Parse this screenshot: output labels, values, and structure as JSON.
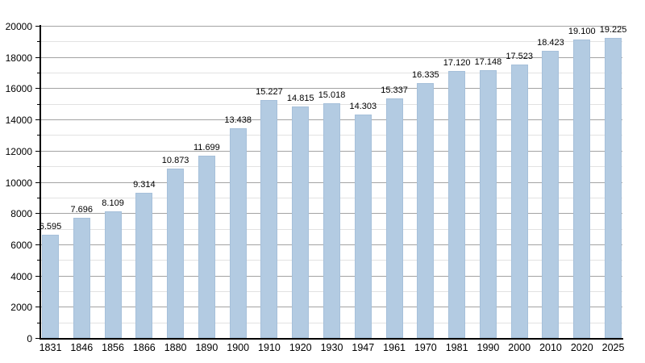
{
  "chart_data": {
    "type": "bar",
    "title": "",
    "xlabel": "",
    "ylabel": "",
    "categories": [
      "1831",
      "1846",
      "1856",
      "1866",
      "1880",
      "1890",
      "1900",
      "1910",
      "1920",
      "1930",
      "1947",
      "1961",
      "1970",
      "1981",
      "1990",
      "2000",
      "2010",
      "2020",
      "2025"
    ],
    "values": [
      6595,
      7696,
      8109,
      9314,
      10873,
      11699,
      13438,
      15227,
      14815,
      15018,
      14303,
      15337,
      16335,
      17120,
      17148,
      17523,
      18423,
      19100,
      19225
    ],
    "value_labels": [
      "6.595",
      "7.696",
      "8.109",
      "9.314",
      "10.873",
      "11.699",
      "13.438",
      "15.227",
      "14.815",
      "15.018",
      "14.303",
      "15.337",
      "16.335",
      "17.120",
      "17.148",
      "17.523",
      "18.423",
      "19.100",
      "19.225"
    ],
    "ylim": [
      0,
      20000
    ],
    "y_major_step": 2000,
    "y_minor_step": 1000,
    "y_tick_labels": [
      "0",
      "2000",
      "4000",
      "6000",
      "8000",
      "10000",
      "12000",
      "14000",
      "16000",
      "18000",
      "20000"
    ],
    "grid": "on",
    "legend": "none",
    "colors": {
      "bar_fill": "#b3cbe2",
      "bar_edge": "#a6c0da",
      "major_grid": "#a3a3a3",
      "minor_grid": "#e2e2e2",
      "axis": "#000000",
      "text": "#000000",
      "background": "#ffffff"
    }
  }
}
